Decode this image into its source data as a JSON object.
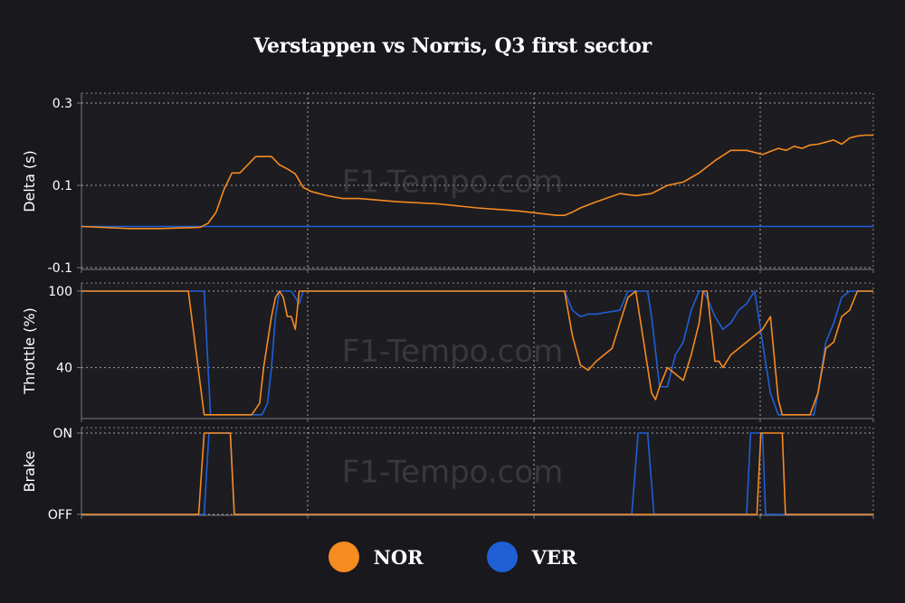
{
  "title": "Verstappen vs Norris, Q3 first sector",
  "watermark": "F1-Tempo.com",
  "colors": {
    "NOR": "#f68b1f",
    "VER": "#1f5fd6",
    "background": "#19181d",
    "panel": "#1d1c21",
    "grid": "#cfcfcf",
    "axis": "#7a7a80"
  },
  "legend": [
    {
      "name": "NOR",
      "color": "#f68b1f"
    },
    {
      "name": "VER",
      "color": "#1f5fd6"
    }
  ],
  "chart_data": {
    "type": "line",
    "grid": true,
    "legend_position": "bottom",
    "x_range": [
      0,
      100
    ],
    "panels": [
      {
        "ylabel": "Delta (s)",
        "ylim": [
          -0.11,
          0.32
        ],
        "yticks": [
          -0.1,
          0.1,
          0.3
        ],
        "ytick_labels": [
          "-0.1",
          "0.1",
          "0.3"
        ],
        "series": [
          {
            "name": "NOR",
            "x": [
              0,
              6,
              10,
              15,
              16,
              17,
              18,
              19,
              20,
              21,
              22,
              24,
              25,
              26,
              27,
              28,
              29,
              31,
              33,
              35,
              40,
              45,
              50,
              55,
              60,
              61,
              62,
              63,
              65,
              68,
              70,
              72,
              74,
              76,
              78,
              80,
              82,
              84,
              86,
              88,
              89,
              90,
              91,
              92,
              93,
              94,
              95,
              96,
              97,
              98,
              99,
              100
            ],
            "values": [
              0.0,
              -0.005,
              -0.005,
              -0.002,
              0.008,
              0.035,
              0.09,
              0.13,
              0.13,
              0.15,
              0.17,
              0.17,
              0.15,
              0.14,
              0.128,
              0.095,
              0.085,
              0.075,
              0.068,
              0.068,
              0.06,
              0.055,
              0.045,
              0.038,
              0.027,
              0.027,
              0.035,
              0.045,
              0.06,
              0.08,
              0.075,
              0.08,
              0.1,
              0.108,
              0.13,
              0.16,
              0.185,
              0.185,
              0.175,
              0.19,
              0.185,
              0.195,
              0.19,
              0.198,
              0.2,
              0.205,
              0.21,
              0.2,
              0.215,
              0.22,
              0.222,
              0.222
            ]
          },
          {
            "name": "VER",
            "x": [
              0,
              100
            ],
            "values": [
              0.0,
              0.0
            ]
          }
        ]
      },
      {
        "ylabel": "Throttle (%)",
        "ylim": [
          0,
          100
        ],
        "yticks": [
          40,
          100
        ],
        "ytick_labels": [
          "40",
          "100"
        ],
        "series": [
          {
            "name": "NOR",
            "x": [
              0,
              13.5,
              15.5,
              21.5,
              22.5,
              23,
              23.5,
              24,
              24.5,
              25,
              25.5,
              26,
              26.5,
              27,
              27.5,
              28,
              29,
              30,
              31,
              60,
              61,
              62,
              63,
              64,
              65,
              66,
              67,
              68,
              69,
              70,
              71,
              72,
              72.5,
              73,
              74,
              75,
              76,
              76.5,
              77,
              78,
              78.5,
              79,
              80,
              80.5,
              81,
              82,
              83,
              84,
              86,
              87,
              88,
              88.5,
              92,
              93,
              94,
              95,
              96,
              97,
              98,
              100
            ],
            "values": [
              100,
              100,
              3,
              3,
              12,
              40,
              60,
              80,
              95,
              100,
              95,
              80,
              80,
              70,
              100,
              100,
              100,
              100,
              100,
              100,
              100,
              65,
              42,
              38,
              45,
              50,
              55,
              75,
              95,
              100,
              60,
              20,
              15,
              25,
              40,
              35,
              30,
              40,
              50,
              75,
              100,
              100,
              45,
              45,
              40,
              50,
              55,
              60,
              70,
              80,
              15,
              3,
              3,
              20,
              55,
              60,
              80,
              85,
              100,
              100
            ]
          },
          {
            "name": "VER",
            "x": [
              0,
              15.5,
              16.3,
              22.8,
              23.5,
              24,
              24.5,
              25,
              25.5,
              26,
              26.5,
              27,
              27.5,
              28,
              29,
              30,
              31,
              60,
              61,
              62,
              63,
              64,
              65,
              66,
              67,
              68,
              69,
              70,
              71,
              71.5,
              72,
              73,
              74,
              75,
              76,
              77,
              78,
              78.5,
              79,
              80,
              81,
              82,
              83,
              84,
              85,
              86,
              87,
              88,
              92,
              92.5,
              93,
              94,
              95,
              96,
              97,
              98,
              99,
              100
            ],
            "values": [
              100,
              100,
              3,
              3,
              12,
              40,
              80,
              100,
              100,
              100,
              100,
              95,
              90,
              100,
              100,
              100,
              100,
              100,
              100,
              85,
              80,
              82,
              82,
              83,
              84,
              85,
              100,
              100,
              100,
              100,
              80,
              25,
              25,
              50,
              60,
              85,
              100,
              100,
              95,
              80,
              70,
              75,
              85,
              90,
              100,
              60,
              20,
              3,
              3,
              3,
              20,
              60,
              75,
              95,
              100,
              100,
              100,
              100
            ]
          }
        ]
      },
      {
        "ylabel": "Brake",
        "ylim": [
          0,
          1
        ],
        "yticks": [
          0,
          1
        ],
        "ytick_labels": [
          "OFF",
          "ON"
        ],
        "series": [
          {
            "name": "NOR",
            "x": [
              0,
              14.8,
              15.5,
              18.8,
              19.3,
              85.3,
              85.8,
              88.5,
              88.9,
              100
            ],
            "values": [
              0,
              0,
              1,
              1,
              0,
              0,
              1,
              1,
              0,
              0
            ]
          },
          {
            "name": "VER",
            "x": [
              0,
              15.5,
              16.1,
              18.8,
              19.3,
              69.5,
              70.3,
              71.5,
              72.3,
              84,
              84.5,
              86,
              86.4,
              100
            ],
            "values": [
              0,
              0,
              1,
              1,
              0,
              0,
              1,
              1,
              0,
              0,
              1,
              1,
              0,
              0
            ]
          }
        ]
      }
    ]
  }
}
